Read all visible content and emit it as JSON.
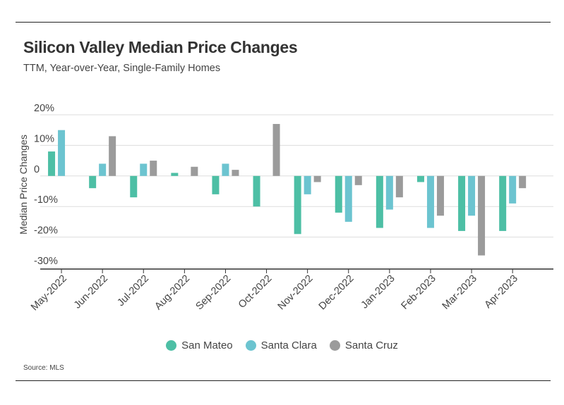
{
  "chart_data": {
    "type": "bar",
    "title": "Silicon Valley Median Price Changes",
    "subtitle": "TTM, Year-over-Year, Single-Family Homes",
    "ylabel": "Median Price Changes",
    "xlabel": "",
    "categories": [
      "May-2022",
      "Jun-2022",
      "Jul-2022",
      "Aug-2022",
      "Sep-2022",
      "Oct-2022",
      "Nov-2022",
      "Dec-2022",
      "Jan-2023",
      "Feb-2023",
      "Mar-2023",
      "Apr-2023"
    ],
    "series": [
      {
        "name": "San Mateo",
        "color": "#4dbfa5",
        "values": [
          8,
          -4,
          -7,
          1,
          -6,
          -10,
          -19,
          -12,
          -17,
          -2,
          -18,
          -18
        ]
      },
      {
        "name": "Santa Clara",
        "color": "#6cc4d0",
        "values": [
          15,
          4,
          4,
          0,
          4,
          0,
          -6,
          -15,
          -11,
          -17,
          -13,
          -9
        ]
      },
      {
        "name": "Santa Cruz",
        "color": "#9b9b9b",
        "values": [
          0,
          13,
          5,
          3,
          2,
          17,
          -2,
          -3,
          -7,
          -13,
          -26,
          -4
        ]
      }
    ],
    "ylim": [
      -30,
      20
    ],
    "yticks": [
      20,
      10,
      0,
      -10,
      -20,
      -30
    ],
    "ytick_labels": [
      "20%",
      "10%",
      "0",
      "-10%",
      "-20%",
      "-30%"
    ],
    "grid": true,
    "legend_position": "bottom-center",
    "source": "Source: MLS"
  }
}
